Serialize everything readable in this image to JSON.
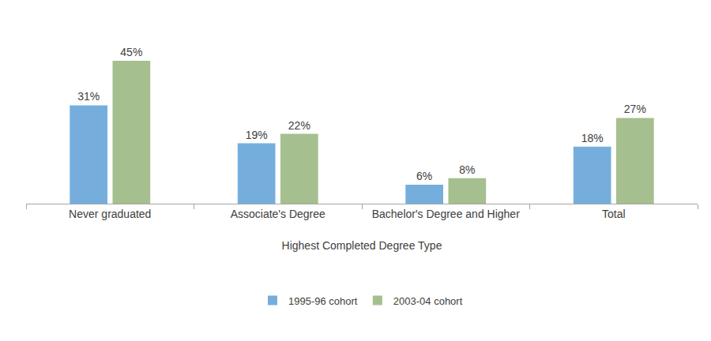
{
  "chart_data": {
    "type": "bar",
    "x_label": "Highest Completed Degree Type",
    "categories": [
      "Never graduated",
      "Associate's Degree",
      "Bachelor's Degree and Higher",
      "Total"
    ],
    "series": [
      {
        "name": "1995-96 cohort",
        "color": "#75aedc",
        "values": [
          31,
          19,
          6,
          18
        ],
        "value_labels": [
          "31%",
          "19%",
          "6%",
          "18%"
        ]
      },
      {
        "name": "2003-04 cohort",
        "color": "#a5bf8e",
        "values": [
          45,
          22,
          8,
          27
        ],
        "value_labels": [
          "45%",
          "22%",
          "8%",
          "27%"
        ]
      }
    ],
    "ylim": [
      0,
      50
    ],
    "grid": false,
    "legend": "bottom",
    "data_labels": true,
    "tick_labels": "x"
  }
}
